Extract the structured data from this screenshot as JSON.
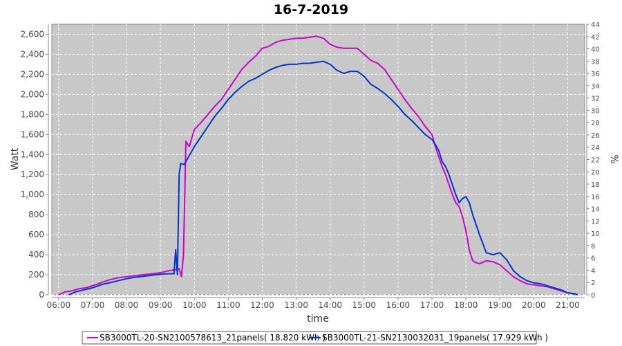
{
  "chart_data": {
    "type": "line",
    "title": "16-7-2019",
    "xlabel": "time",
    "ylabel": "Watt",
    "y2label": "%",
    "xlim": [
      5.8,
      21.5
    ],
    "ylim": [
      0,
      2700
    ],
    "y2lim": [
      0,
      44
    ],
    "grid": true,
    "legend_position": "bottom",
    "x_ticks": [
      "06:00",
      "07:00",
      "08:00",
      "09:00",
      "10:00",
      "11:00",
      "12:00",
      "13:00",
      "14:00",
      "15:00",
      "16:00",
      "17:00",
      "18:00",
      "19:00",
      "20:00",
      "21:00"
    ],
    "y_ticks": [
      "0",
      "200",
      "400",
      "600",
      "800",
      "1,000",
      "1,200",
      "1,400",
      "1,600",
      "1,800",
      "2,000",
      "2,200",
      "2,400",
      "2,600"
    ],
    "y2_ticks": [
      "0",
      "2",
      "4",
      "6",
      "8",
      "10",
      "12",
      "14",
      "16",
      "18",
      "20",
      "22",
      "24",
      "26",
      "28",
      "30",
      "32",
      "34",
      "36",
      "38",
      "40",
      "42",
      "44"
    ],
    "colors": {
      "plot_bg": "#c8c8c8",
      "series1": "#cc00cc",
      "series2": "#0033cc"
    },
    "series": [
      {
        "name": "SB3000TL-20-SN2100578613_21panels( 18.820 kWh )",
        "color": "#cc00cc",
        "x": [
          6.0,
          6.2,
          6.4,
          6.6,
          6.8,
          7.0,
          7.25,
          7.5,
          7.75,
          8.0,
          8.25,
          8.5,
          8.75,
          9.0,
          9.25,
          9.45,
          9.55,
          9.62,
          9.68,
          9.75,
          9.85,
          10.0,
          10.2,
          10.4,
          10.6,
          10.8,
          11.0,
          11.2,
          11.4,
          11.6,
          11.8,
          12.0,
          12.2,
          12.4,
          12.6,
          12.8,
          13.0,
          13.2,
          13.4,
          13.6,
          13.8,
          14.0,
          14.2,
          14.4,
          14.6,
          14.8,
          15.0,
          15.2,
          15.4,
          15.6,
          15.8,
          16.0,
          16.2,
          16.4,
          16.6,
          16.8,
          17.0,
          17.1,
          17.2,
          17.3,
          17.4,
          17.5,
          17.6,
          17.7,
          17.8,
          17.9,
          18.0,
          18.1,
          18.2,
          18.3,
          18.4,
          18.6,
          18.8,
          19.0,
          19.2,
          19.4,
          19.6,
          19.8,
          20.0,
          20.2,
          20.4,
          20.6,
          20.8,
          21.0,
          21.2,
          21.25
        ],
        "values": [
          0,
          30,
          40,
          60,
          70,
          90,
          120,
          150,
          170,
          180,
          190,
          200,
          210,
          220,
          240,
          250,
          260,
          180,
          400,
          1530,
          1480,
          1650,
          1720,
          1800,
          1880,
          1950,
          2050,
          2150,
          2250,
          2320,
          2380,
          2460,
          2480,
          2520,
          2540,
          2550,
          2560,
          2560,
          2570,
          2580,
          2560,
          2500,
          2470,
          2460,
          2460,
          2460,
          2400,
          2340,
          2310,
          2250,
          2150,
          2050,
          1950,
          1860,
          1780,
          1680,
          1600,
          1480,
          1380,
          1280,
          1200,
          1100,
          1000,
          920,
          880,
          780,
          640,
          450,
          340,
          320,
          310,
          340,
          330,
          300,
          240,
          180,
          140,
          110,
          100,
          90,
          80,
          60,
          40,
          20,
          10,
          0
        ]
      },
      {
        "name": "SB3000TL-21-SN2130032031_19panels( 17.929 kWh )",
        "color": "#0033cc",
        "x": [
          6.3,
          6.5,
          6.75,
          7.0,
          7.25,
          7.5,
          7.75,
          8.0,
          8.25,
          8.5,
          8.75,
          9.0,
          9.25,
          9.4,
          9.45,
          9.5,
          9.55,
          9.6,
          9.7,
          9.8,
          10.0,
          10.2,
          10.4,
          10.6,
          10.8,
          11.0,
          11.2,
          11.4,
          11.6,
          11.8,
          12.0,
          12.2,
          12.4,
          12.6,
          12.8,
          13.0,
          13.2,
          13.4,
          13.6,
          13.8,
          14.0,
          14.2,
          14.4,
          14.6,
          14.8,
          15.0,
          15.2,
          15.4,
          15.6,
          15.8,
          16.0,
          16.2,
          16.4,
          16.6,
          16.8,
          17.0,
          17.1,
          17.2,
          17.3,
          17.4,
          17.5,
          17.6,
          17.7,
          17.8,
          17.9,
          18.0,
          18.1,
          18.2,
          18.3,
          18.4,
          18.6,
          18.8,
          19.0,
          19.2,
          19.4,
          19.6,
          19.8,
          20.0,
          20.2,
          20.4,
          20.6,
          20.8,
          21.0,
          21.2,
          21.3
        ],
        "values": [
          0,
          30,
          50,
          70,
          100,
          120,
          140,
          160,
          175,
          185,
          195,
          205,
          210,
          210,
          450,
          200,
          1200,
          1310,
          1300,
          1360,
          1480,
          1580,
          1680,
          1780,
          1860,
          1950,
          2020,
          2080,
          2130,
          2160,
          2200,
          2240,
          2270,
          2290,
          2300,
          2300,
          2310,
          2310,
          2320,
          2330,
          2300,
          2240,
          2210,
          2230,
          2230,
          2180,
          2100,
          2060,
          2010,
          1950,
          1880,
          1800,
          1740,
          1670,
          1600,
          1550,
          1500,
          1440,
          1330,
          1280,
          1200,
          1100,
          1000,
          920,
          960,
          980,
          920,
          800,
          700,
          600,
          420,
          400,
          420,
          350,
          240,
          180,
          140,
          120,
          110,
          90,
          70,
          50,
          20,
          10,
          0
        ]
      }
    ]
  }
}
